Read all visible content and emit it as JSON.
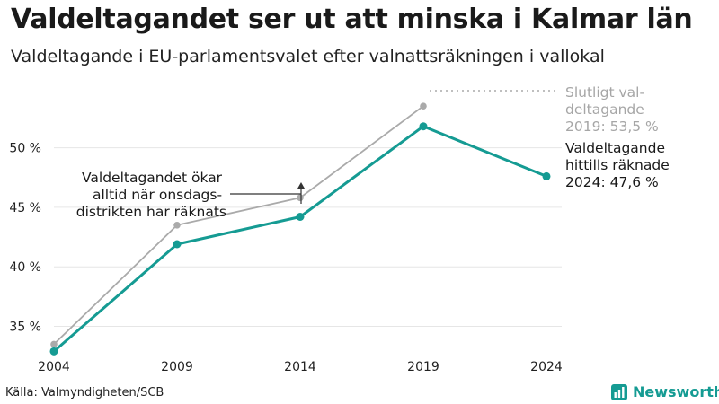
{
  "header": {
    "title": "Valdeltagandet ser ut att minska i Kalmar län",
    "subtitle": "Valdeltagande i EU-parlamentsvalet efter valnattsräkningen i vallokal"
  },
  "chart_data": {
    "type": "line",
    "categories": [
      "2004",
      "2009",
      "2014",
      "2019",
      "2024"
    ],
    "yticks": [
      "35 %",
      "40 %",
      "45 %",
      "50 %"
    ],
    "ytick_values": [
      35,
      40,
      45,
      50
    ],
    "ylim": [
      32.4,
      56
    ],
    "grid": true,
    "series": [
      {
        "name": "Slutligt valdeltagande",
        "color": "#aaaaaa",
        "values": [
          33.5,
          43.5,
          45.8,
          53.5,
          null
        ]
      },
      {
        "name": "Valdeltagande hittills räknade",
        "color": "#159b93",
        "values": [
          32.9,
          41.9,
          44.2,
          51.8,
          47.6
        ]
      }
    ],
    "annotations": {
      "final": [
        "Slutligt val-",
        "deltagande",
        "2019: 53,5 %"
      ],
      "current": [
        "Valdeltagande",
        "hittills räknade",
        "2024: 47,6 %"
      ],
      "note": [
        "Valdeltagandet ökar",
        "alltid när onsdags-",
        "distrikten har räknats"
      ]
    }
  },
  "footer": {
    "source": "Källa: Valmyndigheten/SCB",
    "brand": "Newsworthy",
    "brand_color": "#159b93",
    "brand_icon": "bar-chart-icon"
  }
}
